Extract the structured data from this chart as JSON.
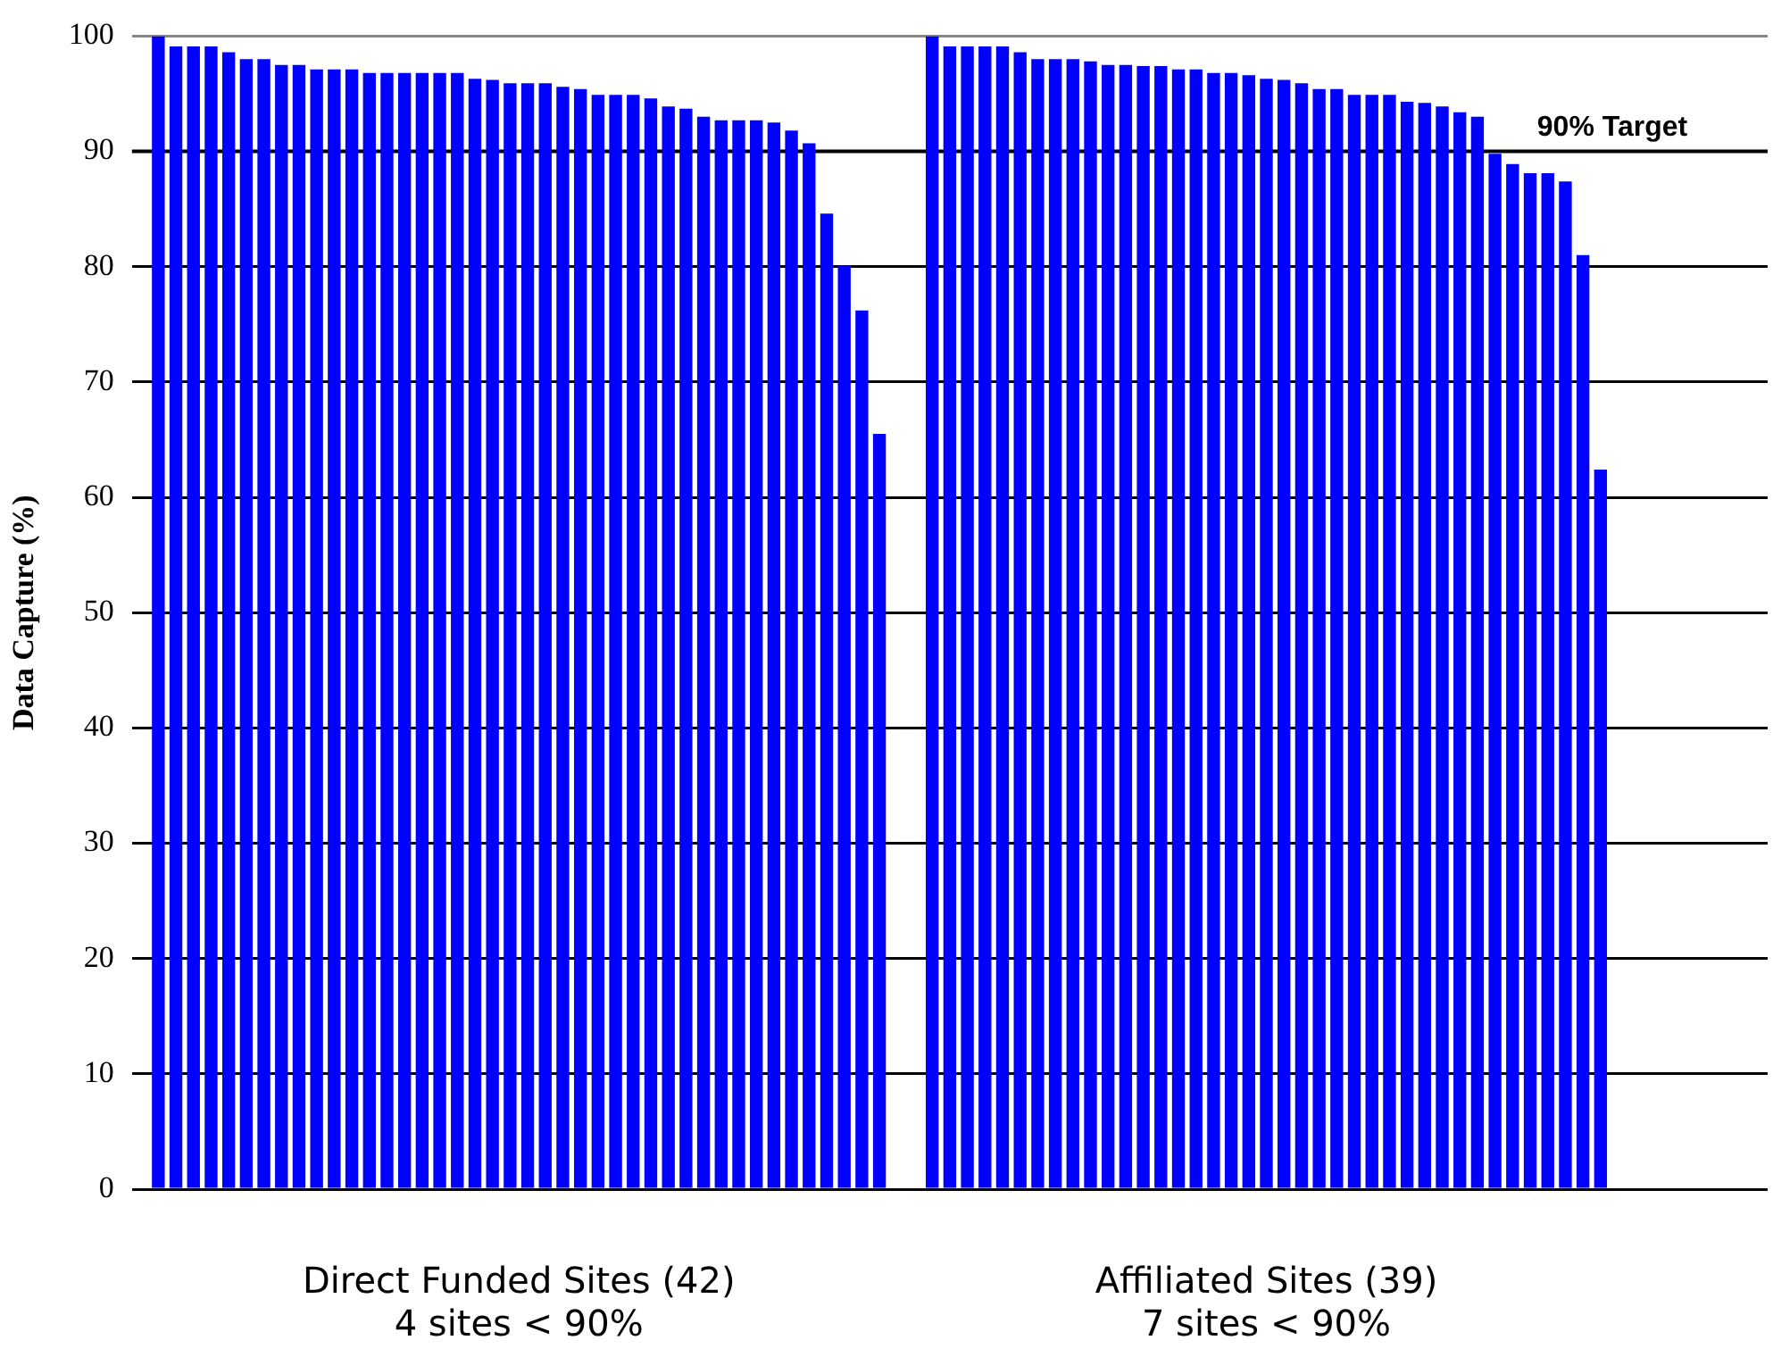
{
  "chart_data": {
    "type": "bar",
    "ylabel": "Data Capture (%)",
    "categories": [
      null,
      null,
      null,
      null,
      null,
      null,
      null,
      null,
      null,
      null,
      null,
      null,
      null,
      null,
      null,
      null,
      null,
      null,
      null,
      null,
      null,
      null,
      null,
      null,
      null,
      null,
      null,
      null,
      null,
      null,
      null,
      null,
      null,
      null,
      null,
      null,
      null,
      null,
      null,
      null,
      null,
      null,
      null,
      null,
      null,
      null,
      null,
      null,
      null,
      null,
      null,
      null,
      null,
      null,
      null,
      null,
      null,
      null,
      null,
      null,
      null,
      null,
      null,
      null,
      null,
      null,
      null,
      null,
      null,
      null,
      null,
      null,
      null,
      null,
      null,
      null,
      null,
      null,
      null,
      null,
      null,
      null,
      null,
      null,
      null,
      null,
      null,
      null,
      null,
      null,
      null,
      null,
      null
    ],
    "values": [
      null,
      100,
      99.1,
      99.1,
      99.1,
      98.6,
      98.0,
      98.0,
      97.5,
      97.5,
      97.1,
      97.1,
      97.1,
      96.8,
      96.8,
      96.8,
      96.8,
      96.8,
      96.8,
      96.3,
      96.2,
      95.9,
      95.9,
      95.9,
      95.6,
      95.4,
      94.9,
      94.9,
      94.9,
      94.6,
      93.9,
      93.7,
      93.0,
      92.7,
      92.7,
      92.7,
      92.5,
      91.8,
      90.7,
      84.6,
      80.1,
      76.2,
      65.5,
      null,
      null,
      100,
      99.1,
      99.1,
      99.1,
      99.1,
      98.6,
      98.0,
      98.0,
      98.0,
      97.8,
      97.5,
      97.5,
      97.4,
      97.4,
      97.1,
      97.1,
      96.8,
      96.8,
      96.6,
      96.3,
      96.2,
      95.9,
      95.4,
      95.4,
      94.9,
      94.9,
      94.9,
      94.3,
      94.2,
      93.9,
      93.4,
      93.0,
      89.8,
      88.9,
      88.1,
      88.1,
      87.4,
      81.0,
      62.4,
      null,
      null,
      null,
      null,
      null,
      null,
      null,
      null,
      null
    ],
    "color": "#0000ff",
    "ylim": [
      0,
      100
    ],
    "yticks": [
      0,
      10,
      20,
      30,
      40,
      50,
      60,
      70,
      80,
      90,
      100
    ],
    "grid": "y",
    "tick_labels": "y",
    "ref_lines": [
      {
        "axis": "y",
        "value": 90,
        "label": "90% Target",
        "color": "#000000"
      }
    ],
    "annotations": [
      "Direct Funded Sites (42)\n4 sites < 90%",
      "Affiliated Sites (39)\n7 sites < 90%"
    ]
  }
}
